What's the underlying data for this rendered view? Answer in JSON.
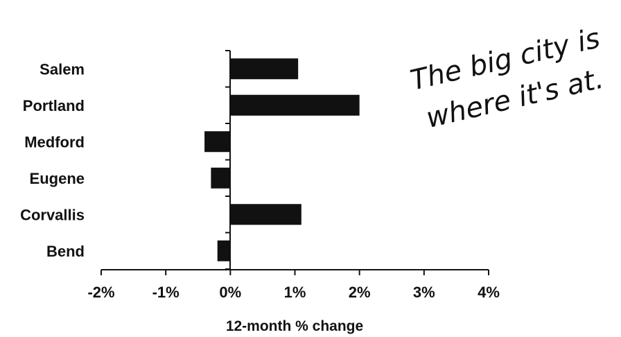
{
  "chart_data": {
    "type": "bar",
    "orientation": "horizontal",
    "categories": [
      "Salem",
      "Portland",
      "Medford",
      "Eugene",
      "Corvallis",
      "Bend"
    ],
    "values": [
      1.05,
      2.0,
      -0.4,
      -0.3,
      1.1,
      -0.2
    ],
    "xlabel": "12-month % change",
    "ylabel": "",
    "xlim": [
      -2,
      4
    ],
    "xticks": [
      -2,
      -1,
      0,
      1,
      2,
      3,
      4
    ],
    "xtick_labels": [
      "-2%",
      "-1%",
      "0%",
      "1%",
      "2%",
      "3%",
      "4%"
    ],
    "grid": false,
    "legend": "none",
    "bar_color": "#111111",
    "annotation": {
      "lines": [
        "The big city is",
        "where it's at."
      ]
    }
  }
}
